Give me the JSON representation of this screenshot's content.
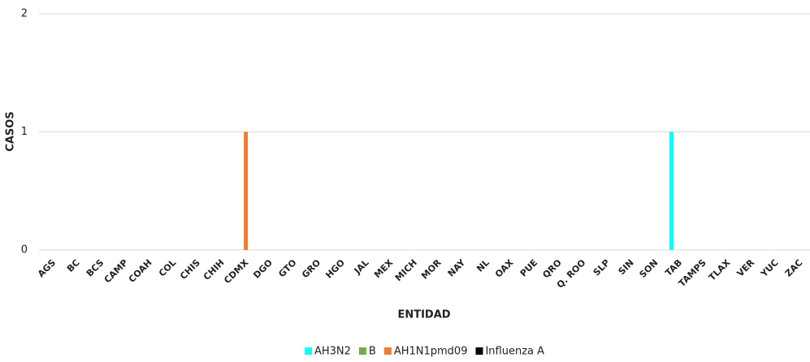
{
  "chart_data": {
    "type": "bar",
    "xlabel": "ENTIDAD",
    "ylabel": "CASOS",
    "categories": [
      "AGS",
      "BC",
      "BCS",
      "CAMP",
      "COAH",
      "COL",
      "CHIS",
      "CHIH",
      "CDMX",
      "DGO",
      "GTO",
      "GRO",
      "HGO",
      "JAL",
      "MEX",
      "MICH",
      "MOR",
      "NAY",
      "NL",
      "OAX",
      "PUE",
      "QRO",
      "Q. ROO",
      "SLP",
      "SIN",
      "SON",
      "TAB",
      "TAMPS",
      "TLAX",
      "VER",
      "YUC",
      "ZAC"
    ],
    "series": [
      {
        "name": "AH3N2",
        "color": "#00ffff",
        "values": [
          0,
          0,
          0,
          0,
          0,
          0,
          0,
          0,
          0,
          0,
          0,
          0,
          0,
          0,
          0,
          0,
          0,
          0,
          0,
          0,
          0,
          0,
          0,
          0,
          0,
          0,
          1,
          0,
          0,
          0,
          0,
          0
        ]
      },
      {
        "name": "B",
        "color": "#70ad47",
        "values": [
          0,
          0,
          0,
          0,
          0,
          0,
          0,
          0,
          0,
          0,
          0,
          0,
          0,
          0,
          0,
          0,
          0,
          0,
          0,
          0,
          0,
          0,
          0,
          0,
          0,
          0,
          0,
          0,
          0,
          0,
          0,
          0
        ]
      },
      {
        "name": "AH1N1pmd09",
        "color": "#ed7d31",
        "values": [
          0,
          0,
          0,
          0,
          0,
          0,
          0,
          0,
          1,
          0,
          0,
          0,
          0,
          0,
          0,
          0,
          0,
          0,
          0,
          0,
          0,
          0,
          0,
          0,
          0,
          0,
          0,
          0,
          0,
          0,
          0,
          0
        ]
      },
      {
        "name": "Influenza A",
        "color": "#000000",
        "values": [
          0,
          0,
          0,
          0,
          0,
          0,
          0,
          0,
          0,
          0,
          0,
          0,
          0,
          0,
          0,
          0,
          0,
          0,
          0,
          0,
          0,
          0,
          0,
          0,
          0,
          0,
          0,
          0,
          0,
          0,
          0,
          0
        ]
      }
    ],
    "ylim": [
      0,
      2
    ],
    "yticks": [
      0,
      1,
      2
    ],
    "grid": true,
    "legend": "bottom"
  }
}
